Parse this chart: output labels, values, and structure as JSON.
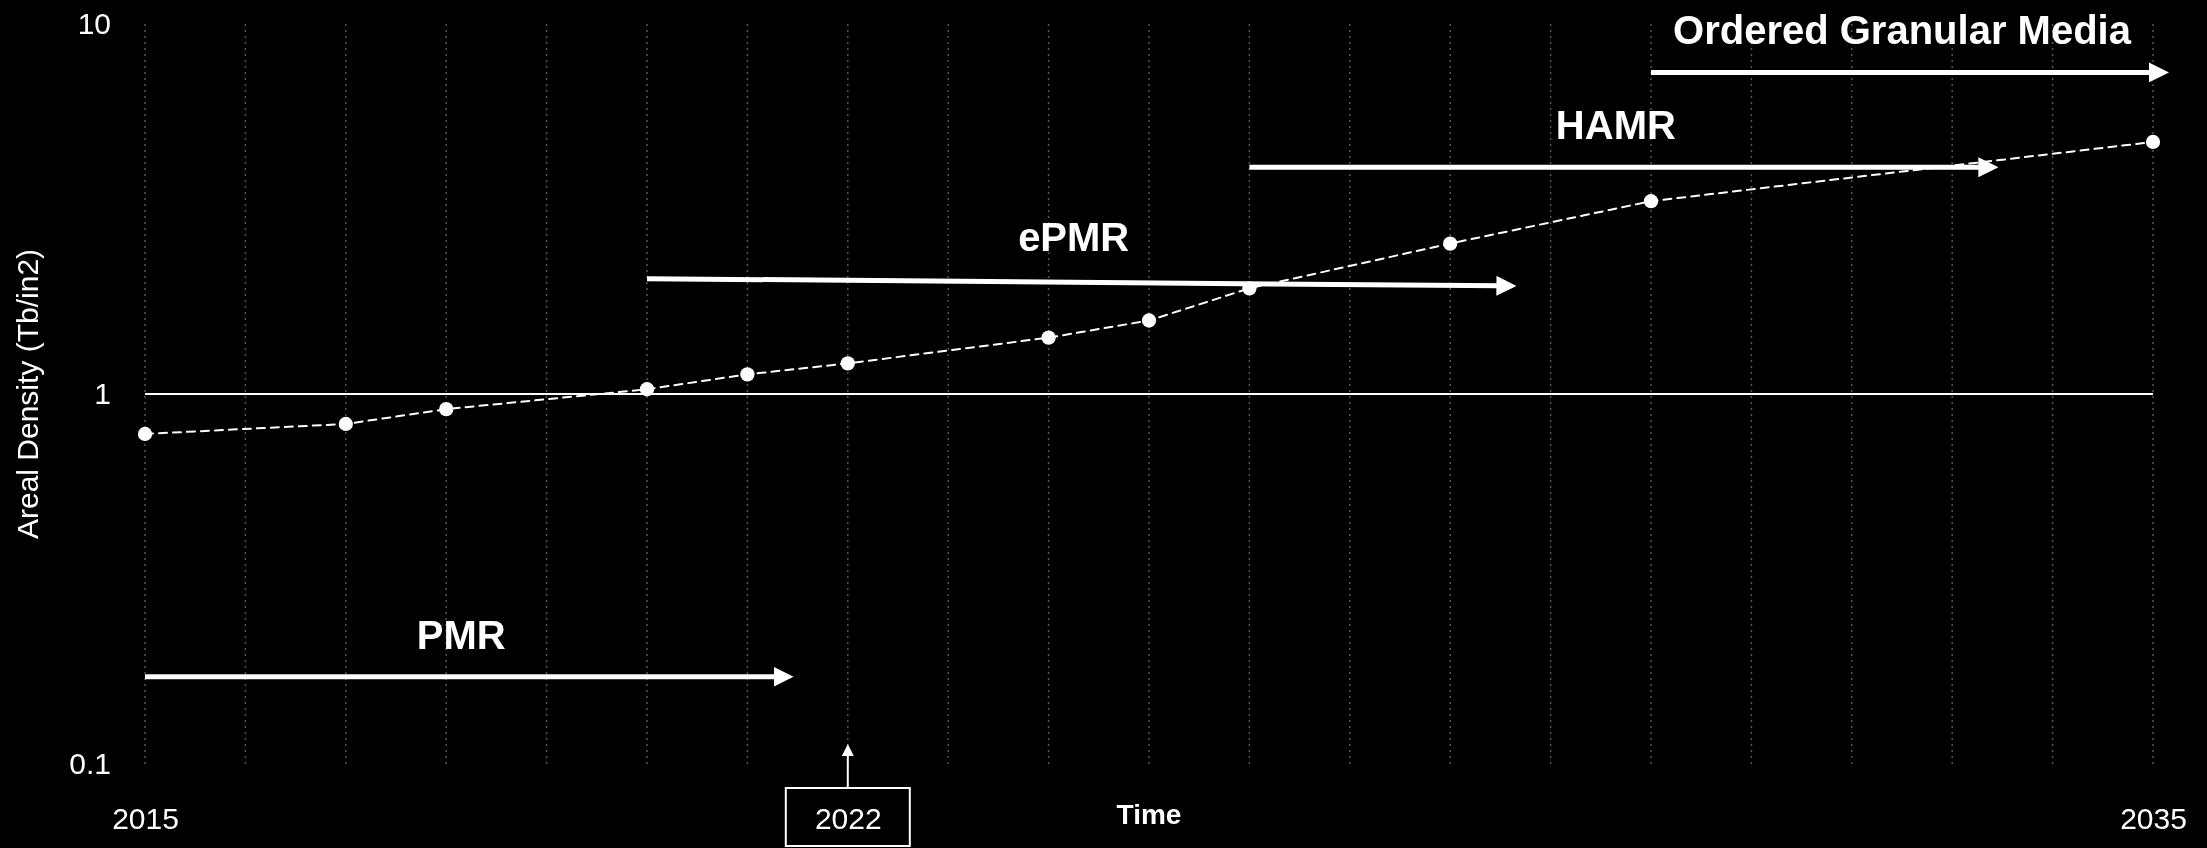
{
  "chart_data": {
    "type": "line",
    "xlabel": "Time",
    "ylabel": "Areal Density (Tb/in2)",
    "log": "y",
    "grid": "x",
    "xlim": [
      2015,
      2035
    ],
    "ylim": [
      0.1,
      10
    ],
    "yticks": [
      0.1,
      1,
      10
    ],
    "xticks": [
      2015,
      {
        "value": 2016,
        "label": null
      },
      {
        "value": 2017,
        "label": null
      },
      {
        "value": 2018,
        "label": null
      },
      {
        "value": 2019,
        "label": null
      },
      {
        "value": 2020,
        "label": null
      },
      {
        "value": 2021,
        "label": null
      },
      {
        "value": 2022,
        "label": "2022"
      },
      {
        "value": 2023,
        "label": null
      },
      {
        "value": 2024,
        "label": null
      },
      {
        "value": 2025,
        "label": null
      },
      {
        "value": 2026,
        "label": null
      },
      {
        "value": 2027,
        "label": null
      },
      {
        "value": 2028,
        "label": null
      },
      {
        "value": 2029,
        "label": null
      },
      {
        "value": 2030,
        "label": null
      },
      {
        "value": 2031,
        "label": null
      },
      {
        "value": 2032,
        "label": null
      },
      {
        "value": 2033,
        "label": null
      },
      {
        "value": 2034,
        "label": null
      },
      2035
    ],
    "ref_lines": [
      {
        "axis": "y",
        "value": 1,
        "color": "#ffffff",
        "line_style": "solid"
      }
    ],
    "series": [
      {
        "color": "#ffffff",
        "marker": "circle",
        "line_style": "dashed",
        "x": [
          2015,
          2017,
          2018,
          2020,
          2021,
          2022,
          2024,
          2025,
          2026,
          2028,
          2030,
          2035
        ],
        "values": [
          0.78,
          0.83,
          0.91,
          1.03,
          1.13,
          1.21,
          1.42,
          1.58,
          1.93,
          2.55,
          3.32,
          4.8
        ]
      },
      {
        "color": "#ffffff",
        "marker": "none",
        "line_style": "solid",
        "x": [
          2015,
          2021.3
        ],
        "values": [
          0.172,
          0.172
        ]
      },
      {
        "color": "#ffffff",
        "marker": "none",
        "line_style": "solid",
        "x": [
          2020,
          2028.5
        ],
        "values": [
          2.05,
          1.96
        ]
      },
      {
        "color": "#ffffff",
        "marker": "none",
        "line_style": "solid",
        "x": [
          2026,
          2033.3
        ],
        "values": [
          4.1,
          4.1
        ]
      },
      {
        "color": "#ffffff",
        "marker": "none",
        "line_style": "solid",
        "x": [
          2030,
          2035
        ],
        "values": [
          7.4,
          7.4
        ]
      }
    ],
    "annotations": [
      "PMR",
      "ePMR",
      "HAMR",
      "Ordered Granular Media"
    ]
  }
}
